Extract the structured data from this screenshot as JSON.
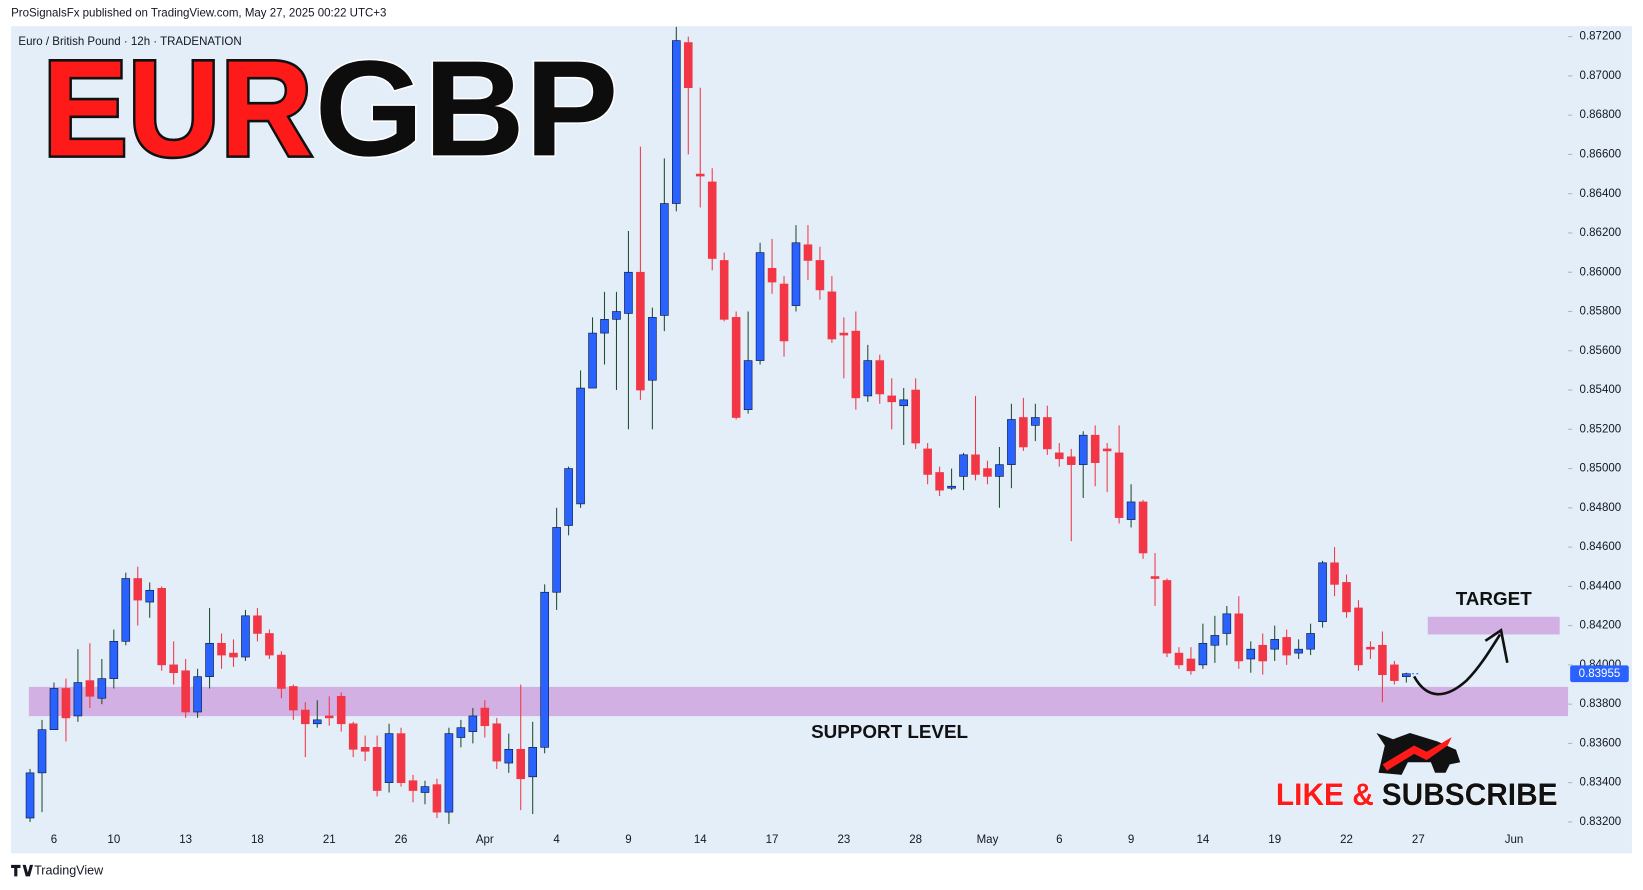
{
  "chart_data": {
    "type": "candlestick",
    "header": "ProSignalsFx published on TradingView.com, May 27, 2025 00:22 UTC+3",
    "instrument": "Euro / British Pound · 12h · TRADENATION",
    "title_parts": [
      "EUR",
      "GBP"
    ],
    "footer": "TradingView",
    "promo": [
      "LIKE &",
      "SUBSCRIBE"
    ],
    "categories": [
      null,
      null,
      "6",
      null,
      null,
      null,
      null,
      "10",
      null,
      null,
      null,
      null,
      null,
      "13",
      null,
      null,
      null,
      null,
      null,
      "18",
      null,
      null,
      null,
      null,
      null,
      "21",
      null,
      null,
      null,
      null,
      null,
      "26",
      null,
      null,
      null,
      null,
      null,
      null,
      "Apr",
      null,
      null,
      null,
      null,
      null,
      "4",
      null,
      null,
      null,
      null,
      null,
      "9",
      null,
      null,
      null,
      null,
      null,
      "14",
      null,
      null,
      null,
      null,
      null,
      "17",
      null,
      null,
      null,
      null,
      null,
      "23",
      null,
      null,
      null,
      null,
      null,
      "28",
      null,
      null,
      null,
      null,
      null,
      "May",
      null,
      null,
      null,
      null,
      null,
      "6",
      null,
      null,
      null,
      null,
      null,
      "9",
      null,
      null,
      null,
      null,
      null,
      "14",
      null,
      null,
      null,
      null,
      null,
      "19",
      null,
      null,
      null,
      null,
      null,
      "22",
      null,
      null,
      null,
      null,
      null,
      "27",
      null,
      null,
      null,
      null,
      null,
      null,
      null,
      "Jun",
      null,
      null,
      null,
      null
    ],
    "open": [
      0.8322,
      0.8345,
      0.8367,
      0.8388,
      0.8374,
      0.8392,
      0.8383,
      0.8393,
      0.8412,
      0.8444,
      0.8432,
      0.8439,
      0.84,
      0.8397,
      0.8376,
      0.8394,
      0.8411,
      0.8406,
      0.8404,
      0.8425,
      0.8416,
      0.8405,
      0.8389,
      0.8377,
      0.837,
      0.8374,
      0.8384,
      0.837,
      0.8358,
      0.8358,
      0.834,
      0.8365,
      0.8341,
      0.8335,
      0.8339,
      0.8325,
      0.8363,
      0.8366,
      0.8378,
      0.837,
      0.835,
      0.8357,
      0.8343,
      0.8358,
      0.8437,
      0.8471,
      0.8482,
      0.8541,
      0.8569,
      0.8576,
      0.8579,
      0.86,
      0.8545,
      0.8578,
      0.8635,
      0.8717,
      0.865,
      0.8646,
      0.8606,
      0.8577,
      0.853,
      0.8555,
      0.8602,
      0.8594,
      0.8583,
      0.8614,
      0.8606,
      0.859,
      0.8569,
      0.857,
      0.8537,
      0.8555,
      0.8537,
      0.8532,
      0.854,
      0.851,
      0.8498,
      0.849,
      0.8496,
      0.8507,
      0.85,
      0.8496,
      0.8502,
      0.8526,
      0.8522,
      0.8526,
      0.8508,
      0.8506,
      0.8502,
      0.8517,
      0.851,
      0.8508,
      0.8474,
      0.8483,
      0.8445,
      0.8443,
      0.8406,
      0.8403,
      0.84,
      0.841,
      0.8416,
      0.8426,
      0.8403,
      0.841,
      0.8408,
      0.8414,
      0.8406,
      0.8408,
      0.8422,
      0.8452,
      0.8442,
      0.8429,
      0.8409,
      0.841,
      0.84,
      0.8394,
      null,
      null,
      null,
      null,
      null,
      null,
      null,
      null,
      null,
      null,
      null,
      null,
      null
    ],
    "high": [
      0.8347,
      0.8372,
      0.8391,
      0.8393,
      0.8408,
      0.8411,
      0.8403,
      0.8418,
      0.8447,
      0.845,
      0.8442,
      0.844,
      0.8412,
      0.8403,
      0.8398,
      0.8429,
      0.8416,
      0.8413,
      0.8428,
      0.8429,
      0.8418,
      0.8407,
      0.839,
      0.8381,
      0.8382,
      0.8384,
      0.8386,
      0.8371,
      0.8364,
      0.8364,
      0.837,
      0.8368,
      0.8344,
      0.8341,
      0.8342,
      0.8368,
      0.8372,
      0.8378,
      0.8382,
      0.8373,
      0.8365,
      0.839,
      0.8371,
      0.8441,
      0.848,
      0.8501,
      0.855,
      0.8577,
      0.859,
      0.859,
      0.8621,
      0.8664,
      0.8582,
      0.8658,
      0.8725,
      0.872,
      0.8694,
      0.8653,
      0.861,
      0.858,
      0.858,
      0.8615,
      0.8617,
      0.8598,
      0.8624,
      0.8624,
      0.8613,
      0.8598,
      0.8577,
      0.858,
      0.8563,
      0.8558,
      0.8546,
      0.8541,
      0.8546,
      0.8513,
      0.8501,
      0.85,
      0.8508,
      0.8537,
      0.8504,
      0.8511,
      0.8533,
      0.8536,
      0.8533,
      0.8532,
      0.8513,
      0.851,
      0.8519,
      0.8522,
      0.8513,
      0.8522,
      0.8492,
      0.8484,
      0.8457,
      0.8444,
      0.8409,
      0.8409,
      0.8421,
      0.8425,
      0.843,
      0.8435,
      0.8412,
      0.8416,
      0.842,
      0.8418,
      0.8413,
      0.8421,
      0.8453,
      0.846,
      0.8446,
      0.8433,
      0.8412,
      0.8417,
      0.8402,
      0.8396,
      null,
      null,
      null,
      null,
      null,
      null,
      null,
      null,
      null,
      null,
      null,
      null,
      null
    ],
    "low": [
      0.832,
      0.8325,
      0.8367,
      0.8361,
      0.8371,
      0.8378,
      0.838,
      0.8388,
      0.841,
      0.842,
      0.8424,
      0.8397,
      0.839,
      0.8373,
      0.8373,
      0.8388,
      0.8398,
      0.8399,
      0.8402,
      0.8412,
      0.8403,
      0.8383,
      0.8372,
      0.8353,
      0.8368,
      0.8369,
      0.8366,
      0.8353,
      0.8351,
      0.8333,
      0.8335,
      0.8338,
      0.833,
      0.8329,
      0.8322,
      0.8319,
      0.8358,
      0.836,
      0.8363,
      0.8347,
      0.8345,
      0.8326,
      0.8324,
      0.8355,
      0.8428,
      0.8466,
      0.848,
      0.8541,
      0.8553,
      0.854,
      0.852,
      0.8535,
      0.852,
      0.857,
      0.8631,
      0.866,
      0.8633,
      0.8601,
      0.8575,
      0.8525,
      0.8528,
      0.8553,
      0.8589,
      0.8557,
      0.858,
      0.8596,
      0.8586,
      0.8564,
      0.8546,
      0.853,
      0.8534,
      0.8533,
      0.852,
      0.8512,
      0.851,
      0.8492,
      0.8486,
      0.8489,
      0.8489,
      0.8494,
      0.8492,
      0.848,
      0.849,
      0.8509,
      0.8514,
      0.8507,
      0.8501,
      0.8463,
      0.8485,
      0.8491,
      0.8488,
      0.8472,
      0.847,
      0.8454,
      0.843,
      0.8404,
      0.8398,
      0.8395,
      0.8398,
      0.8401,
      0.841,
      0.8398,
      0.8396,
      0.8395,
      0.8402,
      0.84,
      0.8403,
      0.8405,
      0.8419,
      0.8435,
      0.8424,
      0.8397,
      0.8403,
      0.8381,
      0.839,
      0.8391,
      null,
      null,
      null,
      null,
      null,
      null,
      null,
      null,
      null,
      null,
      null,
      null,
      null
    ],
    "close": [
      0.8345,
      0.8367,
      0.8388,
      0.8373,
      0.8391,
      0.8384,
      0.8393,
      0.8412,
      0.8444,
      0.8433,
      0.8438,
      0.84,
      0.8396,
      0.8376,
      0.8394,
      0.8411,
      0.8405,
      0.8404,
      0.8425,
      0.8416,
      0.8405,
      0.8388,
      0.8377,
      0.837,
      0.8372,
      0.8373,
      0.837,
      0.8357,
      0.8356,
      0.8336,
      0.8365,
      0.834,
      0.8336,
      0.8338,
      0.8325,
      0.8365,
      0.8368,
      0.8374,
      0.8369,
      0.8351,
      0.8357,
      0.8342,
      0.8358,
      0.8437,
      0.847,
      0.85,
      0.8541,
      0.8569,
      0.8576,
      0.858,
      0.86,
      0.854,
      0.8577,
      0.8635,
      0.8718,
      0.8694,
      0.8649,
      0.8607,
      0.8576,
      0.8526,
      0.8555,
      0.861,
      0.8595,
      0.8565,
      0.8615,
      0.8606,
      0.8591,
      0.8566,
      0.8568,
      0.8536,
      0.8555,
      0.8538,
      0.8534,
      0.8535,
      0.8513,
      0.8497,
      0.8489,
      0.8491,
      0.8507,
      0.8497,
      0.8496,
      0.8502,
      0.8525,
      0.8511,
      0.8526,
      0.851,
      0.8505,
      0.8502,
      0.8517,
      0.8503,
      0.8509,
      0.8475,
      0.8483,
      0.8457,
      0.8444,
      0.8406,
      0.84,
      0.8397,
      0.8411,
      0.8415,
      0.8426,
      0.8402,
      0.8408,
      0.8402,
      0.8413,
      0.8405,
      0.8408,
      0.8416,
      0.8452,
      0.8441,
      0.8427,
      0.84,
      0.8408,
      0.8395,
      0.8392,
      0.83955,
      null,
      null,
      null,
      null,
      null,
      null,
      null,
      null,
      null,
      null,
      null,
      null,
      null
    ],
    "up_color": "#2962ff",
    "down_color": "#f23645",
    "up_wick_color": "#1e4d2b",
    "down_wick_color": "#f23645",
    "last_price": 0.83955,
    "last_price_color": "#2962ff",
    "ylim": [
      0.8316,
      0.8725
    ],
    "yticks": [
      {
        "value": 0.832,
        "label": "0.83200"
      },
      {
        "value": 0.834,
        "label": "0.83400"
      },
      {
        "value": 0.836,
        "label": "0.83600"
      },
      {
        "value": 0.838,
        "label": "0.83800"
      },
      {
        "value": 0.84,
        "label": "0.84000"
      },
      {
        "value": 0.842,
        "label": "0.84200"
      },
      {
        "value": 0.844,
        "label": "0.84400"
      },
      {
        "value": 0.846,
        "label": "0.84600"
      },
      {
        "value": 0.848,
        "label": "0.84800"
      },
      {
        "value": 0.85,
        "label": "0.85000"
      },
      {
        "value": 0.852,
        "label": "0.85200"
      },
      {
        "value": 0.854,
        "label": "0.85400"
      },
      {
        "value": 0.856,
        "label": "0.85600"
      },
      {
        "value": 0.858,
        "label": "0.85800"
      },
      {
        "value": 0.86,
        "label": "0.86000"
      },
      {
        "value": 0.862,
        "label": "0.86200"
      },
      {
        "value": 0.864,
        "label": "0.86400"
      },
      {
        "value": 0.866,
        "label": "0.86600"
      },
      {
        "value": 0.868,
        "label": "0.86800"
      },
      {
        "value": 0.87,
        "label": "0.87000"
      },
      {
        "value": 0.872,
        "label": "0.87200"
      }
    ],
    "grid": false,
    "zones": [
      {
        "label": "SUPPORT LEVEL",
        "from": 0.83739,
        "to": 0.83888,
        "color": "#cfa8e0"
      },
      {
        "label": "TARGET",
        "from": 0.84155,
        "to": 0.84245,
        "color": "#cfa8e0"
      }
    ]
  }
}
